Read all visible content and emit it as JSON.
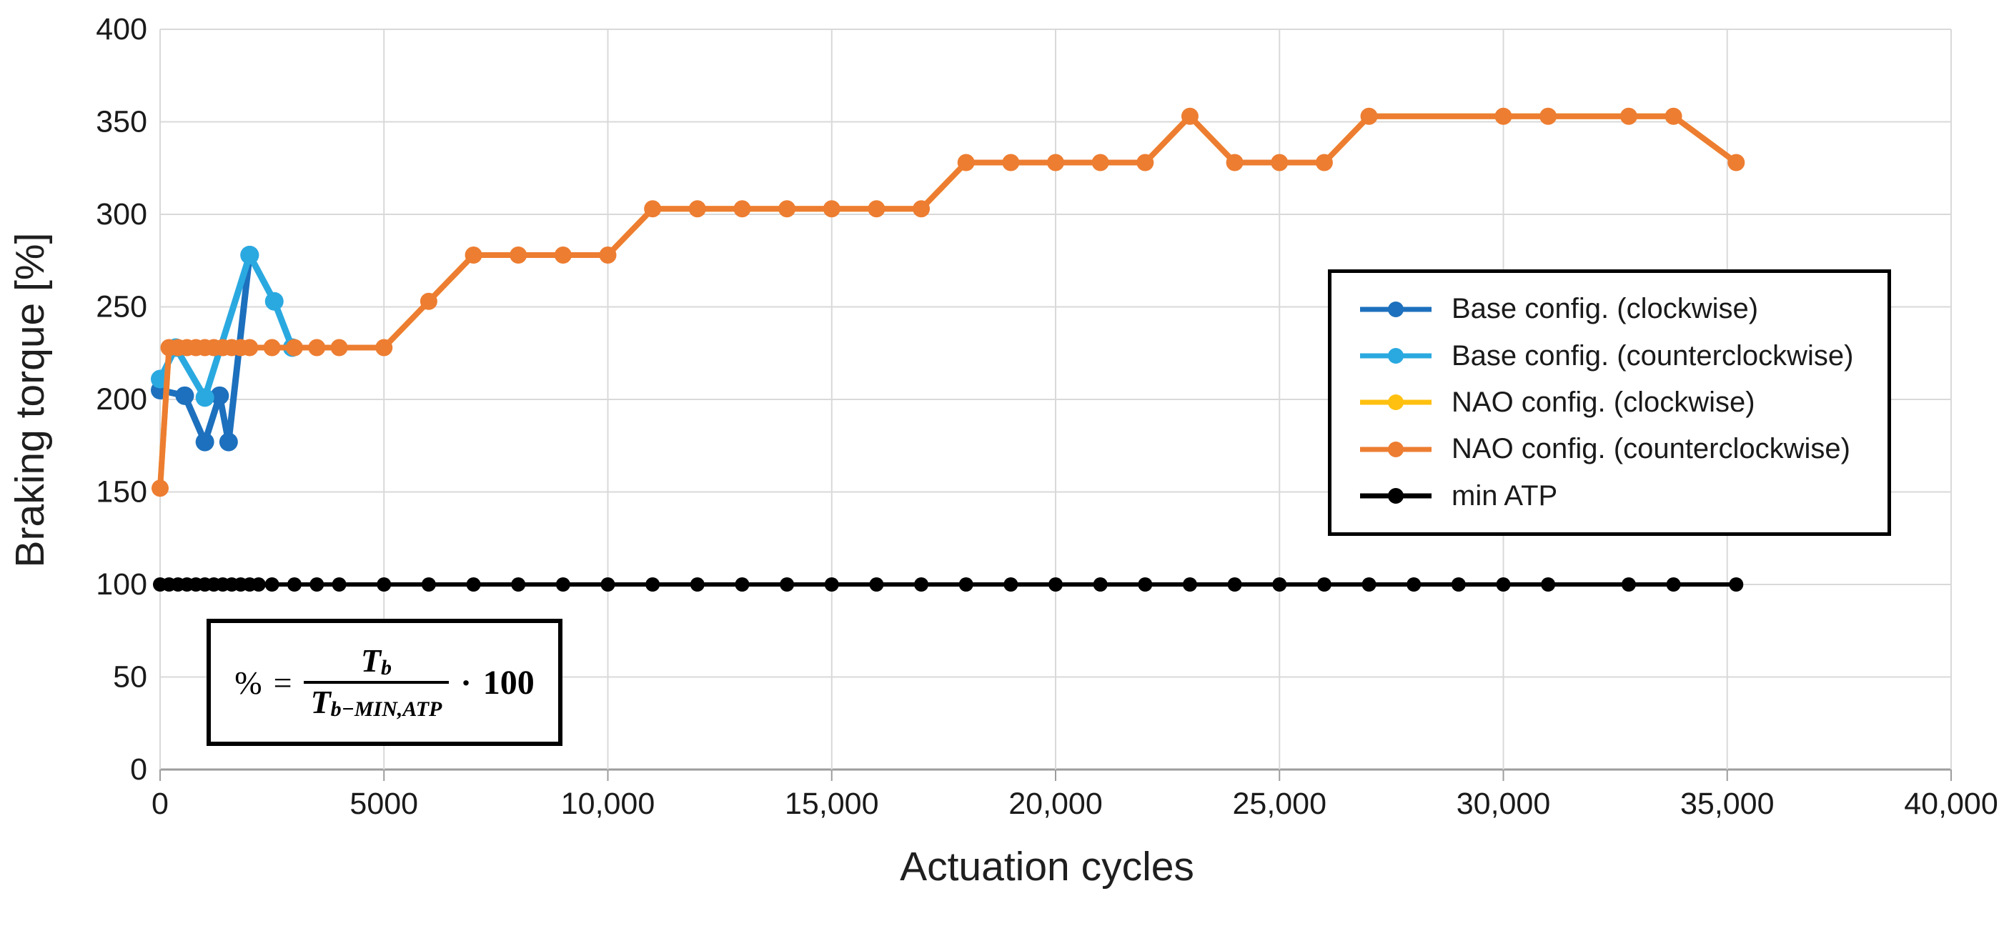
{
  "chart_data": {
    "type": "line",
    "title": "",
    "xlabel": "Actuation cycles",
    "ylabel": "Braking torque [%]",
    "xlim": [
      0,
      40000
    ],
    "ylim": [
      0,
      400
    ],
    "grid": true,
    "grid_color": "#d9d9d9",
    "axis_color": "#9d9d9d",
    "tick_label_color": "#1a1a1a",
    "legend_position": "inside-right-middle",
    "x_ticks": [
      0,
      5000,
      10000,
      15000,
      20000,
      25000,
      30000,
      35000,
      40000
    ],
    "x_tick_labels": [
      "0",
      "5000",
      "10,000",
      "15,000",
      "20,000",
      "25,000",
      "30,000",
      "35,000",
      "40,000"
    ],
    "y_ticks": [
      0,
      50,
      100,
      150,
      200,
      250,
      300,
      350,
      400
    ],
    "y_tick_labels": [
      "0",
      "50",
      "100",
      "150",
      "200",
      "250",
      "300",
      "350",
      "400"
    ],
    "series": [
      {
        "name": "Base config. (clockwise)",
        "color": "#1d70bd",
        "x": [
          0,
          550,
          1000,
          1330,
          1530,
          2000
        ],
        "y": [
          205,
          202,
          177,
          202,
          177,
          278
        ]
      },
      {
        "name": "Base config. (counterclockwise)",
        "color": "#2aa9e0",
        "x": [
          0,
          350,
          1000,
          2000,
          2550,
          2950
        ],
        "y": [
          211,
          228,
          201,
          278,
          253,
          228
        ]
      },
      {
        "name": "NAO config. (clockwise)",
        "color": "#ffc010",
        "x": [
          0,
          200,
          400,
          600,
          800,
          1000,
          1200,
          1400,
          1600,
          1800,
          2000,
          2500,
          3000,
          3500,
          4000,
          5000,
          6000,
          7000,
          8000,
          9000,
          10000,
          11000,
          12000,
          13000,
          14000,
          15000,
          16000,
          17000,
          18000,
          19000,
          20000,
          21000,
          22000,
          23000,
          24000,
          25000,
          26000,
          27000,
          30000,
          31000,
          32800,
          33800,
          35200
        ],
        "y": [
          152,
          228,
          228,
          228,
          228,
          228,
          228,
          228,
          228,
          228,
          228,
          228,
          228,
          228,
          228,
          228,
          253,
          278,
          278,
          278,
          278,
          303,
          303,
          303,
          303,
          303,
          303,
          303,
          328,
          328,
          328,
          328,
          328,
          353,
          328,
          328,
          328,
          353,
          353,
          353,
          353,
          353,
          328
        ]
      },
      {
        "name": "NAO config. (counterclockwise)",
        "color": "#ed7d31",
        "x": [
          0,
          200,
          400,
          600,
          800,
          1000,
          1200,
          1400,
          1600,
          1800,
          2000,
          2500,
          3000,
          3500,
          4000,
          5000,
          6000,
          7000,
          8000,
          9000,
          10000,
          11000,
          12000,
          13000,
          14000,
          15000,
          16000,
          17000,
          18000,
          19000,
          20000,
          21000,
          22000,
          23000,
          24000,
          25000,
          26000,
          27000,
          30000,
          31000,
          32800,
          33800,
          35200
        ],
        "y": [
          152,
          228,
          228,
          228,
          228,
          228,
          228,
          228,
          228,
          228,
          228,
          228,
          228,
          228,
          228,
          228,
          253,
          278,
          278,
          278,
          278,
          303,
          303,
          303,
          303,
          303,
          303,
          303,
          328,
          328,
          328,
          328,
          328,
          353,
          328,
          328,
          328,
          353,
          353,
          353,
          353,
          353,
          328
        ]
      },
      {
        "name": "min ATP",
        "color": "#000000",
        "x": [
          0,
          200,
          400,
          600,
          800,
          1000,
          1200,
          1400,
          1600,
          1800,
          2000,
          2200,
          2500,
          3000,
          3500,
          4000,
          5000,
          6000,
          7000,
          8000,
          9000,
          10000,
          11000,
          12000,
          13000,
          14000,
          15000,
          16000,
          17000,
          18000,
          19000,
          20000,
          21000,
          22000,
          23000,
          24000,
          25000,
          26000,
          27000,
          28000,
          29000,
          30000,
          31000,
          32800,
          33800,
          35200
        ],
        "y": [
          100,
          100,
          100,
          100,
          100,
          100,
          100,
          100,
          100,
          100,
          100,
          100,
          100,
          100,
          100,
          100,
          100,
          100,
          100,
          100,
          100,
          100,
          100,
          100,
          100,
          100,
          100,
          100,
          100,
          100,
          100,
          100,
          100,
          100,
          100,
          100,
          100,
          100,
          100,
          100,
          100,
          100,
          100,
          100,
          100,
          100
        ]
      }
    ]
  },
  "formula": {
    "percent": "%",
    "equals": "=",
    "num_base": "T",
    "num_sub": "b",
    "den_base": "T",
    "den_sub": "b−MIN,ATP",
    "dot": "·",
    "factor": "100"
  }
}
